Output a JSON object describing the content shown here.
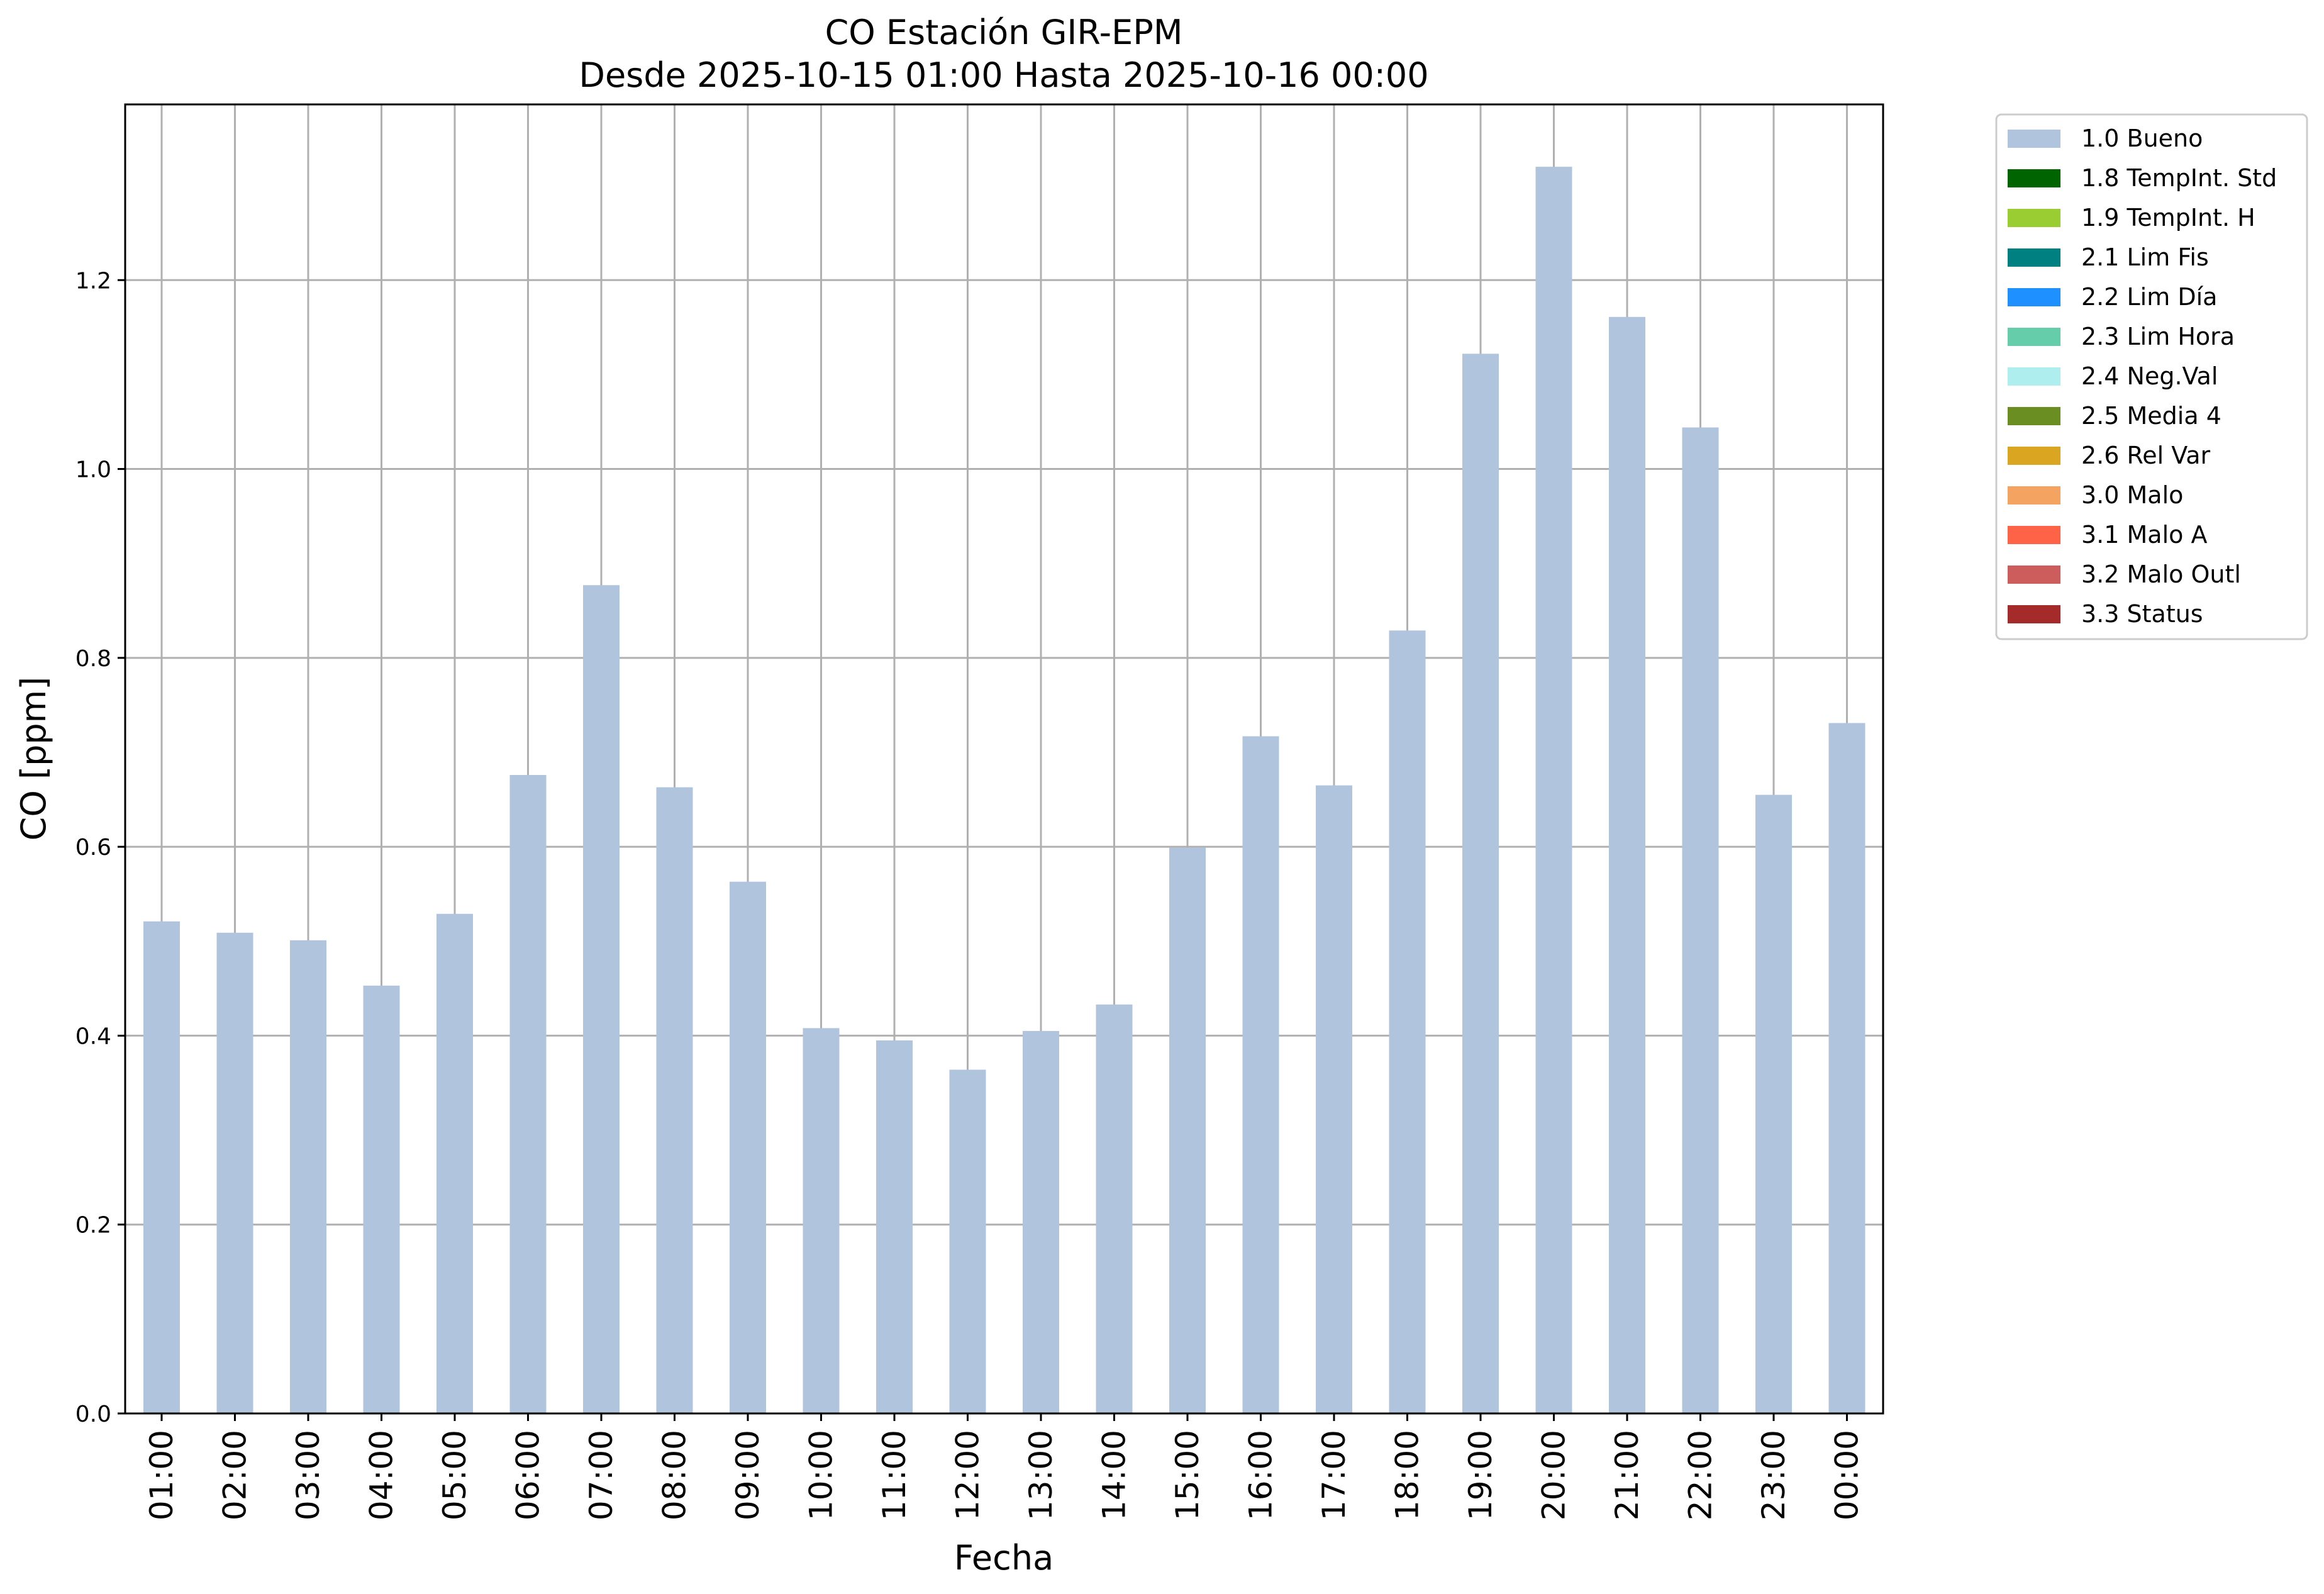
{
  "chart_data": {
    "type": "bar",
    "title": "CO Estación GIR-EPM",
    "subtitle": "Desde 2025-10-15 01:00 Hasta 2025-10-16 00:00",
    "xlabel": "Fecha",
    "ylabel": "CO [ppm]",
    "ylim": [
      0,
      1.386
    ],
    "yticks": [
      0.0,
      0.2,
      0.4,
      0.6,
      0.8,
      1.0,
      1.2
    ],
    "ytick_labels": [
      "0.0",
      "0.2",
      "0.4",
      "0.6",
      "0.8",
      "1.0",
      "1.2"
    ],
    "grid": true,
    "legend_position": "outside-top-right",
    "categories": [
      "01:00",
      "02:00",
      "03:00",
      "04:00",
      "05:00",
      "06:00",
      "07:00",
      "08:00",
      "09:00",
      "10:00",
      "11:00",
      "12:00",
      "13:00",
      "14:00",
      "15:00",
      "16:00",
      "17:00",
      "18:00",
      "19:00",
      "20:00",
      "21:00",
      "22:00",
      "23:00",
      "00:00"
    ],
    "series": [
      {
        "name": "1.0 Bueno",
        "color": "#b0c4de",
        "values": [
          0.521,
          0.509,
          0.501,
          0.453,
          0.529,
          0.676,
          0.877,
          0.663,
          0.563,
          0.408,
          0.395,
          0.364,
          0.405,
          0.433,
          0.599,
          0.717,
          0.665,
          0.829,
          1.122,
          1.32,
          1.161,
          1.044,
          0.655,
          0.731
        ]
      }
    ],
    "legend": [
      {
        "label": "1.0 Bueno",
        "color": "#b0c4de"
      },
      {
        "label": "1.8 TempInt. Std",
        "color": "#006400"
      },
      {
        "label": "1.9 TempInt. H",
        "color": "#9acd32"
      },
      {
        "label": "2.1 Lim Fis",
        "color": "#008080"
      },
      {
        "label": "2.2 Lim Día",
        "color": "#1e90ff"
      },
      {
        "label": "2.3 Lim Hora",
        "color": "#66cdaa"
      },
      {
        "label": "2.4 Neg.Val",
        "color": "#afeeee"
      },
      {
        "label": "2.5 Media 4",
        "color": "#6b8e23"
      },
      {
        "label": "2.6 Rel Var",
        "color": "#daa520"
      },
      {
        "label": "3.0 Malo",
        "color": "#f4a460"
      },
      {
        "label": "3.1 Malo A",
        "color": "#ff6347"
      },
      {
        "label": "3.2 Malo Outl",
        "color": "#cd5c5c"
      },
      {
        "label": "3.3 Status",
        "color": "#a52a2a"
      }
    ]
  }
}
